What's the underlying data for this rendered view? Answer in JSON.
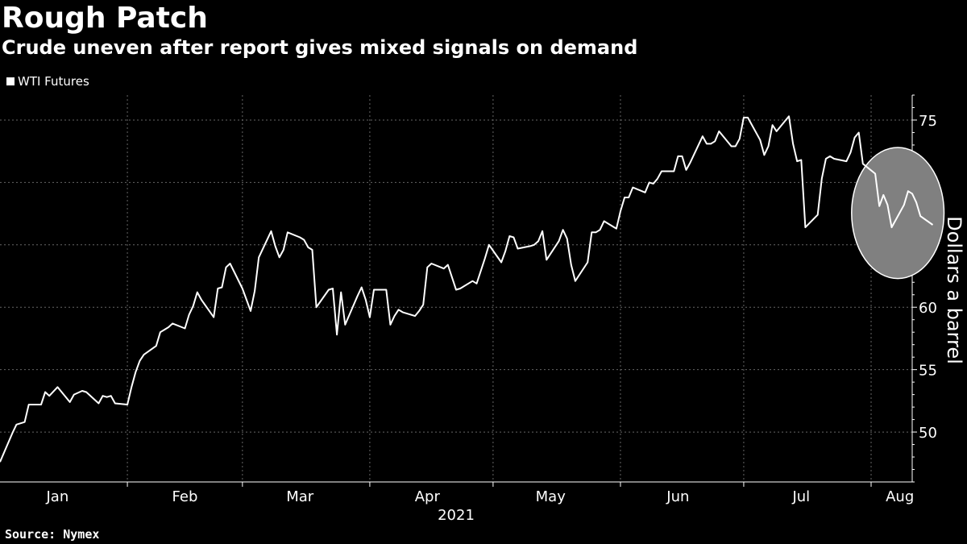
{
  "header": {
    "title": "Rough Patch",
    "subtitle": "Crude uneven after report gives mixed signals on demand"
  },
  "legend": {
    "label": "WTI Futures"
  },
  "source": "Source: Nymex",
  "colors": {
    "background": "#000000",
    "line": "#ffffff",
    "grid": "#666666",
    "highlight": "#808080"
  },
  "chart_data": {
    "type": "line",
    "title": "Rough Patch",
    "subtitle": "Crude uneven after report gives mixed signals on demand",
    "xlabel": "2021",
    "ylabel": "Dollars a barrel",
    "ylim": [
      46,
      77
    ],
    "xlim": [
      "2021-01-01",
      "2021-08-11"
    ],
    "yticks": [
      50,
      55,
      60,
      65,
      70,
      75
    ],
    "y_axis_side": "right",
    "grid": true,
    "legend_position": "top-left",
    "month_ticks": [
      {
        "label": "Jan",
        "date": "2021-01-15"
      },
      {
        "label": "Feb",
        "date": "2021-02-15"
      },
      {
        "label": "Mar",
        "date": "2021-03-15"
      },
      {
        "label": "Apr",
        "date": "2021-04-15"
      },
      {
        "label": "May",
        "date": "2021-05-15"
      },
      {
        "label": "Jun",
        "date": "2021-06-15"
      },
      {
        "label": "Jul",
        "date": "2021-07-15"
      },
      {
        "label": "Aug",
        "date": "2021-08-08"
      }
    ],
    "year_label": "2021",
    "series": [
      {
        "name": "WTI Futures",
        "points": [
          [
            "2021-01-01",
            47.6
          ],
          [
            "2021-01-04",
            49.9
          ],
          [
            "2021-01-05",
            50.6
          ],
          [
            "2021-01-07",
            50.8
          ],
          [
            "2021-01-08",
            52.2
          ],
          [
            "2021-01-11",
            52.2
          ],
          [
            "2021-01-12",
            53.2
          ],
          [
            "2021-01-13",
            52.9
          ],
          [
            "2021-01-15",
            53.6
          ],
          [
            "2021-01-18",
            52.4
          ],
          [
            "2021-01-19",
            53.0
          ],
          [
            "2021-01-21",
            53.3
          ],
          [
            "2021-01-22",
            53.2
          ],
          [
            "2021-01-25",
            52.3
          ],
          [
            "2021-01-26",
            52.9
          ],
          [
            "2021-01-27",
            52.8
          ],
          [
            "2021-01-28",
            52.9
          ],
          [
            "2021-01-29",
            52.3
          ],
          [
            "2021-02-01",
            52.2
          ],
          [
            "2021-02-02",
            53.6
          ],
          [
            "2021-02-03",
            54.8
          ],
          [
            "2021-02-04",
            55.7
          ],
          [
            "2021-02-05",
            56.2
          ],
          [
            "2021-02-08",
            56.9
          ],
          [
            "2021-02-09",
            58.0
          ],
          [
            "2021-02-10",
            58.2
          ],
          [
            "2021-02-11",
            58.4
          ],
          [
            "2021-02-12",
            58.7
          ],
          [
            "2021-02-15",
            58.3
          ],
          [
            "2021-02-16",
            59.4
          ],
          [
            "2021-02-17",
            60.1
          ],
          [
            "2021-02-18",
            61.2
          ],
          [
            "2021-02-19",
            60.6
          ],
          [
            "2021-02-22",
            59.2
          ],
          [
            "2021-02-23",
            61.5
          ],
          [
            "2021-02-24",
            61.6
          ],
          [
            "2021-02-25",
            63.2
          ],
          [
            "2021-02-26",
            63.5
          ],
          [
            "2021-03-01",
            61.5
          ],
          [
            "2021-03-02",
            60.6
          ],
          [
            "2021-03-03",
            59.7
          ],
          [
            "2021-03-04",
            61.3
          ],
          [
            "2021-03-05",
            64.0
          ],
          [
            "2021-03-08",
            66.1
          ],
          [
            "2021-03-09",
            64.9
          ],
          [
            "2021-03-10",
            64.0
          ],
          [
            "2021-03-11",
            64.6
          ],
          [
            "2021-03-12",
            66.0
          ],
          [
            "2021-03-15",
            65.6
          ],
          [
            "2021-03-16",
            65.4
          ],
          [
            "2021-03-17",
            64.8
          ],
          [
            "2021-03-18",
            64.6
          ],
          [
            "2021-03-19",
            60.0
          ],
          [
            "2021-03-22",
            61.4
          ],
          [
            "2021-03-23",
            61.5
          ],
          [
            "2021-03-24",
            57.8
          ],
          [
            "2021-03-25",
            61.2
          ],
          [
            "2021-03-26",
            58.6
          ],
          [
            "2021-03-29",
            60.9
          ],
          [
            "2021-03-30",
            61.6
          ],
          [
            "2021-03-31",
            60.6
          ],
          [
            "2021-04-01",
            59.2
          ],
          [
            "2021-04-02",
            61.4
          ],
          [
            "2021-04-05",
            61.4
          ],
          [
            "2021-04-06",
            58.6
          ],
          [
            "2021-04-07",
            59.3
          ],
          [
            "2021-04-08",
            59.8
          ],
          [
            "2021-04-09",
            59.6
          ],
          [
            "2021-04-12",
            59.3
          ],
          [
            "2021-04-13",
            59.7
          ],
          [
            "2021-04-14",
            60.2
          ],
          [
            "2021-04-15",
            63.2
          ],
          [
            "2021-04-16",
            63.5
          ],
          [
            "2021-04-19",
            63.1
          ],
          [
            "2021-04-20",
            63.4
          ],
          [
            "2021-04-21",
            62.4
          ],
          [
            "2021-04-22",
            61.4
          ],
          [
            "2021-04-23",
            61.5
          ],
          [
            "2021-04-26",
            62.1
          ],
          [
            "2021-04-27",
            61.9
          ],
          [
            "2021-04-28",
            62.9
          ],
          [
            "2021-04-29",
            63.9
          ],
          [
            "2021-04-30",
            65.0
          ],
          [
            "2021-05-03",
            63.6
          ],
          [
            "2021-05-04",
            64.5
          ],
          [
            "2021-05-05",
            65.7
          ],
          [
            "2021-05-06",
            65.6
          ],
          [
            "2021-05-07",
            64.7
          ],
          [
            "2021-05-10",
            64.9
          ],
          [
            "2021-05-11",
            65.0
          ],
          [
            "2021-05-12",
            65.3
          ],
          [
            "2021-05-13",
            66.1
          ],
          [
            "2021-05-14",
            63.8
          ],
          [
            "2021-05-17",
            65.3
          ],
          [
            "2021-05-18",
            66.2
          ],
          [
            "2021-05-19",
            65.5
          ],
          [
            "2021-05-20",
            63.4
          ],
          [
            "2021-05-21",
            62.1
          ],
          [
            "2021-05-24",
            63.6
          ],
          [
            "2021-05-25",
            66.0
          ],
          [
            "2021-05-26",
            66.0
          ],
          [
            "2021-05-27",
            66.2
          ],
          [
            "2021-05-28",
            66.9
          ],
          [
            "2021-05-31",
            66.3
          ],
          [
            "2021-06-01",
            67.7
          ],
          [
            "2021-06-02",
            68.8
          ],
          [
            "2021-06-03",
            68.8
          ],
          [
            "2021-06-04",
            69.6
          ],
          [
            "2021-06-07",
            69.2
          ],
          [
            "2021-06-08",
            70.0
          ],
          [
            "2021-06-09",
            69.9
          ],
          [
            "2021-06-10",
            70.3
          ],
          [
            "2021-06-11",
            70.9
          ],
          [
            "2021-06-14",
            70.9
          ],
          [
            "2021-06-15",
            72.1
          ],
          [
            "2021-06-16",
            72.1
          ],
          [
            "2021-06-17",
            71.0
          ],
          [
            "2021-06-18",
            71.6
          ],
          [
            "2021-06-21",
            73.7
          ],
          [
            "2021-06-22",
            73.1
          ],
          [
            "2021-06-23",
            73.1
          ],
          [
            "2021-06-24",
            73.3
          ],
          [
            "2021-06-25",
            74.1
          ],
          [
            "2021-06-28",
            72.9
          ],
          [
            "2021-06-29",
            72.9
          ],
          [
            "2021-06-30",
            73.5
          ],
          [
            "2021-07-01",
            75.2
          ],
          [
            "2021-07-02",
            75.2
          ],
          [
            "2021-07-05",
            73.4
          ],
          [
            "2021-07-06",
            72.2
          ],
          [
            "2021-07-07",
            72.9
          ],
          [
            "2021-07-08",
            74.6
          ],
          [
            "2021-07-09",
            74.1
          ],
          [
            "2021-07-12",
            75.3
          ],
          [
            "2021-07-13",
            73.1
          ],
          [
            "2021-07-14",
            71.7
          ],
          [
            "2021-07-15",
            71.8
          ],
          [
            "2021-07-16",
            66.4
          ],
          [
            "2021-07-19",
            67.4
          ],
          [
            "2021-07-20",
            70.3
          ],
          [
            "2021-07-21",
            71.9
          ],
          [
            "2021-07-22",
            72.1
          ],
          [
            "2021-07-23",
            71.9
          ],
          [
            "2021-07-26",
            71.7
          ],
          [
            "2021-07-27",
            72.4
          ],
          [
            "2021-07-28",
            73.6
          ],
          [
            "2021-07-29",
            74.0
          ],
          [
            "2021-07-30",
            71.5
          ],
          [
            "2021-08-02",
            70.7
          ],
          [
            "2021-08-03",
            68.1
          ],
          [
            "2021-08-04",
            69.0
          ],
          [
            "2021-08-05",
            68.2
          ],
          [
            "2021-08-06",
            66.4
          ],
          [
            "2021-08-09",
            68.2
          ],
          [
            "2021-08-10",
            69.3
          ],
          [
            "2021-08-11",
            69.1
          ],
          [
            "2021-08-12",
            68.4
          ],
          [
            "2021-08-13",
            67.3
          ],
          [
            "2021-08-16",
            66.6
          ]
        ]
      }
    ],
    "annotations": [
      {
        "type": "highlight-ellipse",
        "from": "2021-07-30",
        "to": "2021-08-16",
        "ylim": [
          62.3,
          72.8
        ]
      }
    ]
  }
}
